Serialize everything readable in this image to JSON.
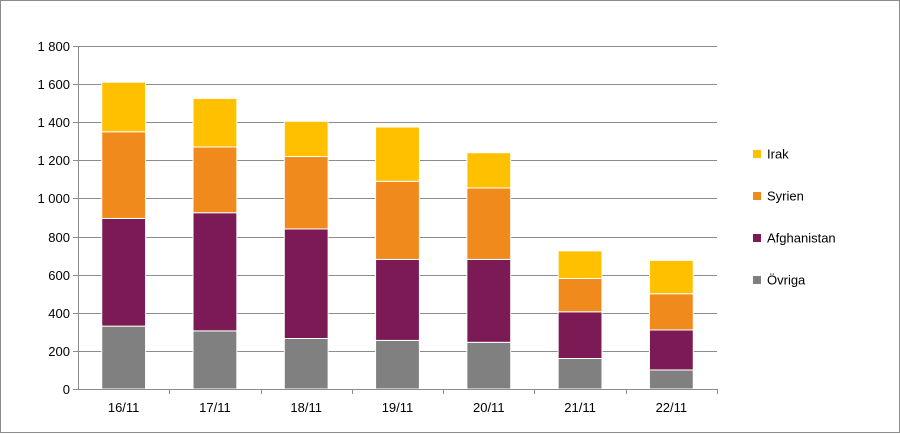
{
  "chart_data": {
    "type": "bar",
    "stacked": true,
    "categories": [
      "16/11",
      "17/11",
      "18/11",
      "19/11",
      "20/11",
      "21/11",
      "22/11"
    ],
    "series": [
      {
        "name": "Övriga",
        "color": "#808080",
        "values": [
          330,
          305,
          265,
          255,
          245,
          160,
          100
        ]
      },
      {
        "name": "Afghanistan",
        "color": "#7b1a55",
        "values": [
          565,
          620,
          575,
          425,
          435,
          245,
          210
        ]
      },
      {
        "name": "Syrien",
        "color": "#f08a1d",
        "values": [
          455,
          345,
          380,
          410,
          375,
          175,
          190
        ]
      },
      {
        "name": "Irak",
        "color": "#ffc000",
        "values": [
          260,
          255,
          185,
          285,
          185,
          145,
          175
        ]
      }
    ],
    "ylim": [
      0,
      1800
    ],
    "yticks": [
      0,
      200,
      400,
      600,
      800,
      1000,
      1200,
      1400,
      1600,
      1800
    ],
    "ytick_labels": [
      "0",
      "200",
      "400",
      "600",
      "800",
      "1 000",
      "1 200",
      "1 400",
      "1 600",
      "1 800"
    ],
    "grid": true,
    "legend_position": "right",
    "legend_order": [
      "Irak",
      "Syrien",
      "Afghanistan",
      "Övriga"
    ]
  }
}
